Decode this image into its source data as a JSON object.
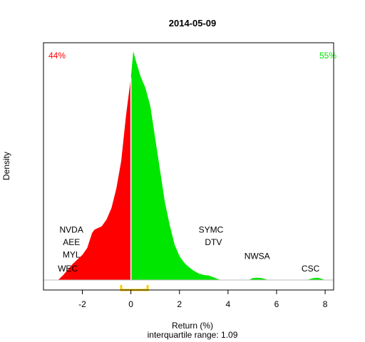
{
  "chart_data": {
    "type": "area",
    "title": "2014-05-09",
    "xlabel": "Return (%)",
    "subtitle": "interquartile range: 1.09",
    "ylabel": "Density",
    "xlim": [
      -3.6,
      8.35
    ],
    "ylim": [
      0,
      1
    ],
    "x_ticks": [
      -2,
      0,
      2,
      4,
      6,
      8
    ],
    "x_tick_labels": [
      "-2",
      "0",
      "2",
      "4",
      "6",
      "8"
    ],
    "pct_negative": "44%",
    "pct_positive": "55%",
    "colors": {
      "negative": "#ff0000",
      "positive": "#00e600",
      "iqr": "#ffcc00",
      "zero_line": "#ffffff",
      "baseline": "#bbbbbb"
    },
    "iqr_bracket": [
      -0.4,
      0.69
    ],
    "density": {
      "x": [
        -3.0,
        -2.8,
        -2.6,
        -2.4,
        -2.2,
        -2.0,
        -1.8,
        -1.6,
        -1.5,
        -1.4,
        -1.2,
        -1.0,
        -0.8,
        -0.6,
        -0.4,
        -0.2,
        0.0,
        0.1,
        0.2,
        0.4,
        0.6,
        0.8,
        1.0,
        1.2,
        1.4,
        1.6,
        1.8,
        2.0,
        2.2,
        2.4,
        2.6,
        2.8,
        3.0,
        3.2,
        3.4,
        3.6,
        3.7,
        3.8,
        4.2,
        4.6,
        4.9,
        5.0,
        5.2,
        5.4,
        5.6,
        6.0,
        7.0,
        7.3,
        7.5,
        7.7,
        7.9,
        8.0
      ],
      "y": [
        0.0,
        0.02,
        0.045,
        0.07,
        0.09,
        0.11,
        0.14,
        0.205,
        0.22,
        0.225,
        0.235,
        0.265,
        0.315,
        0.4,
        0.52,
        0.72,
        0.885,
        1.0,
        0.96,
        0.89,
        0.84,
        0.76,
        0.62,
        0.48,
        0.34,
        0.24,
        0.155,
        0.105,
        0.075,
        0.055,
        0.04,
        0.028,
        0.022,
        0.02,
        0.012,
        0.004,
        0.0,
        0.0,
        0.0,
        0.0,
        0.002,
        0.008,
        0.01,
        0.008,
        0.002,
        0.0,
        0.0,
        0.002,
        0.008,
        0.01,
        0.004,
        0.0
      ]
    },
    "annotations": [
      {
        "text": "NVDA",
        "x": -2.45,
        "y": 0.22
      },
      {
        "text": "AEE",
        "x": -2.45,
        "y": 0.165
      },
      {
        "text": "MYL",
        "x": -2.45,
        "y": 0.11
      },
      {
        "text": "WEC",
        "x": -2.6,
        "y": 0.05
      },
      {
        "text": "SYMC",
        "x": 3.3,
        "y": 0.22
      },
      {
        "text": "DTV",
        "x": 3.4,
        "y": 0.165
      },
      {
        "text": "NWSA",
        "x": 5.2,
        "y": 0.105
      },
      {
        "text": "CSC",
        "x": 7.4,
        "y": 0.05
      }
    ]
  }
}
